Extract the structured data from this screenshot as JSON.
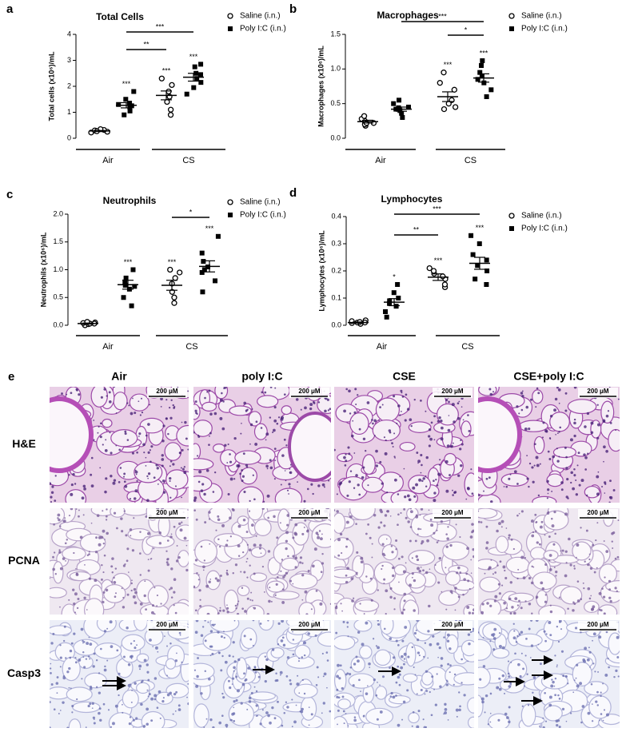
{
  "chart_data": [
    {
      "type": "dot",
      "panel": "a",
      "title": "Total Cells",
      "ylabel": "Total cells (x10⁶)/mL",
      "groups": [
        "Air",
        "CS"
      ],
      "ylim": [
        0,
        4
      ],
      "yticks": [
        0,
        1,
        2,
        3,
        4
      ],
      "series": [
        {
          "name": "Saline (i.n.)",
          "marker": "open-circle",
          "color": "#000000",
          "values": [
            [
              0.22,
              0.25,
              0.28,
              0.3,
              0.32,
              0.35,
              0.27
            ],
            [
              0.9,
              1.1,
              1.4,
              1.6,
              1.8,
              2.05,
              2.3
            ]
          ],
          "means": [
            0.28,
            1.65
          ],
          "errors": [
            0.02,
            0.17
          ],
          "significance": [
            null,
            "***"
          ]
        },
        {
          "name": "Poly I:C (i.n.)",
          "marker": "filled-square",
          "color": "#000000",
          "values": [
            [
              0.9,
              1.05,
              1.2,
              1.3,
              1.35,
              1.5,
              1.8,
              1.25
            ],
            [
              1.7,
              1.95,
              2.15,
              2.3,
              2.5,
              2.75,
              2.85,
              2.45
            ]
          ],
          "means": [
            1.27,
            2.35
          ],
          "errors": [
            0.1,
            0.15
          ],
          "significance": [
            "***",
            "***"
          ]
        }
      ],
      "comparisons": [
        "**",
        "***"
      ]
    },
    {
      "type": "dot",
      "panel": "b",
      "title": "Macrophages",
      "ylabel": "Macrophages (x10⁶)/mL",
      "groups": [
        "Air",
        "CS"
      ],
      "ylim": [
        0,
        1.5
      ],
      "yticks": [
        {
          "value": 0,
          "label": "0.0"
        },
        0.5,
        {
          "value": 1,
          "label": "1.0"
        },
        1.5
      ],
      "series": [
        {
          "name": "Saline (i.n.)",
          "marker": "open-circle",
          "color": "#000000",
          "values": [
            [
              0.18,
              0.2,
              0.22,
              0.25,
              0.28,
              0.32,
              0.22
            ],
            [
              0.42,
              0.45,
              0.5,
              0.55,
              0.7,
              0.8,
              0.95
            ]
          ],
          "means": [
            0.24,
            0.6
          ],
          "errors": [
            0.02,
            0.07
          ],
          "significance": [
            null,
            "***"
          ]
        },
        {
          "name": "Poly I:C (i.n.)",
          "marker": "filled-square",
          "color": "#000000",
          "values": [
            [
              0.3,
              0.36,
              0.4,
              0.42,
              0.45,
              0.5,
              0.55,
              0.44
            ],
            [
              0.6,
              0.7,
              0.8,
              0.85,
              0.9,
              0.95,
              1.05,
              1.12
            ]
          ],
          "means": [
            0.42,
            0.87
          ],
          "errors": [
            0.03,
            0.06
          ],
          "significance": [
            null,
            "***"
          ]
        }
      ],
      "comparisons": [
        "*",
        "***"
      ]
    },
    {
      "type": "dot",
      "panel": "c",
      "title": "Neutrophils",
      "ylabel": "Neutrophils (x10⁶)/mL",
      "groups": [
        "Air",
        "CS"
      ],
      "ylim": [
        0,
        2
      ],
      "yticks": [
        {
          "value": 0,
          "label": "0.0"
        },
        0.5,
        {
          "value": 1,
          "label": "1.0"
        },
        1.5,
        {
          "value": 2,
          "label": "2.0"
        }
      ],
      "series": [
        {
          "name": "Saline (i.n.)",
          "marker": "open-circle",
          "color": "#000000",
          "values": [
            [
              0.0,
              0.02,
              0.03,
              0.04,
              0.05,
              0.06,
              0.03
            ],
            [
              0.4,
              0.5,
              0.6,
              0.75,
              0.85,
              0.95,
              1.0
            ]
          ],
          "means": [
            0.03,
            0.72
          ],
          "errors": [
            0.01,
            0.09
          ],
          "significance": [
            null,
            "***"
          ]
        },
        {
          "name": "Poly I:C (i.n.)",
          "marker": "filled-square",
          "color": "#000000",
          "values": [
            [
              0.35,
              0.5,
              0.65,
              0.72,
              0.78,
              0.85,
              1.0,
              0.7
            ],
            [
              0.6,
              0.8,
              0.95,
              1.05,
              1.15,
              1.3,
              1.6,
              1.0
            ]
          ],
          "means": [
            0.73,
            1.06
          ],
          "errors": [
            0.08,
            0.1
          ],
          "significance": [
            "***",
            "***"
          ]
        }
      ],
      "comparisons": [
        "*"
      ]
    },
    {
      "type": "dot",
      "panel": "d",
      "title": "Lymphocytes",
      "ylabel": "Lymphocytes (x10⁶)/mL",
      "groups": [
        "Air",
        "CS"
      ],
      "ylim": [
        0,
        0.4
      ],
      "yticks": [
        {
          "value": 0,
          "label": "0.0"
        },
        0.1,
        0.2,
        0.3,
        0.4
      ],
      "series": [
        {
          "name": "Saline (i.n.)",
          "marker": "open-circle",
          "color": "#000000",
          "values": [
            [
              0.005,
              0.008,
              0.01,
              0.012,
              0.015,
              0.018,
              0.01
            ],
            [
              0.14,
              0.15,
              0.17,
              0.18,
              0.19,
              0.21,
              0.2
            ]
          ],
          "means": [
            0.01,
            0.177
          ],
          "errors": [
            0.002,
            0.012
          ],
          "significance": [
            null,
            "***"
          ]
        },
        {
          "name": "Poly I:C (i.n.)",
          "marker": "filled-square",
          "color": "#000000",
          "values": [
            [
              0.03,
              0.05,
              0.07,
              0.08,
              0.1,
              0.12,
              0.15,
              0.09
            ],
            [
              0.15,
              0.17,
              0.22,
              0.24,
              0.26,
              0.3,
              0.33,
              0.2
            ]
          ],
          "means": [
            0.085,
            0.228
          ],
          "errors": [
            0.013,
            0.022
          ],
          "significance": [
            "*",
            "***"
          ]
        }
      ],
      "comparisons": [
        "**",
        "***"
      ]
    }
  ],
  "panel_e": {
    "label": "e",
    "columns": [
      "Air",
      "poly I:C",
      "CSE",
      "CSE+poly I:C"
    ],
    "rows": [
      "H&E",
      "PCNA",
      "Casp3"
    ],
    "scale_bar": "200 μM"
  }
}
